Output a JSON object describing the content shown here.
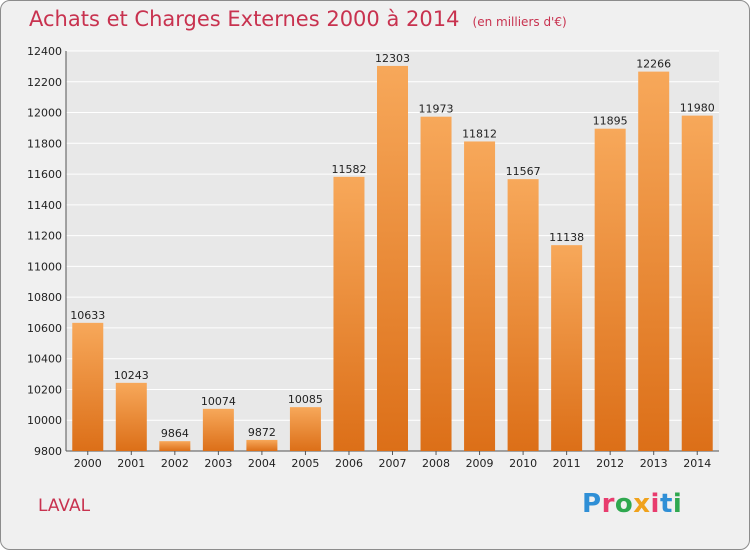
{
  "header": {
    "title": "Achats et Charges Externes 2000 à 2014",
    "subtitle": "(en milliers d'€)"
  },
  "footer": {
    "location": "LAVAL",
    "brand_letters": [
      "P",
      "r",
      "o",
      "x",
      "i",
      "t",
      "i"
    ],
    "brand_colors": [
      "#2f8fd6",
      "#e83c6e",
      "#2fa84f",
      "#f0a21c",
      "#e83c6e",
      "#2f8fd6",
      "#2fa84f"
    ]
  },
  "chart_data": {
    "type": "bar",
    "title": "Achats et Charges Externes 2000 à 2014",
    "subtitle": "(en milliers d'€)",
    "categories": [
      "2000",
      "2001",
      "2002",
      "2003",
      "2004",
      "2005",
      "2006",
      "2007",
      "2008",
      "2009",
      "2010",
      "2011",
      "2012",
      "2013",
      "2014"
    ],
    "values": [
      10633,
      10243,
      9864,
      10074,
      9872,
      10085,
      11582,
      12303,
      11973,
      11812,
      11567,
      11138,
      11895,
      12266,
      11980
    ],
    "ylim": [
      9800,
      12400
    ],
    "yticks": [
      9800,
      10000,
      10200,
      10400,
      10600,
      10800,
      11000,
      11200,
      11400,
      11600,
      11800,
      12000,
      12200,
      12400
    ],
    "grid": true,
    "bar_color_top": "#f7a85a",
    "bar_color_bottom": "#dc6f18",
    "xlabel": "",
    "ylabel": ""
  }
}
